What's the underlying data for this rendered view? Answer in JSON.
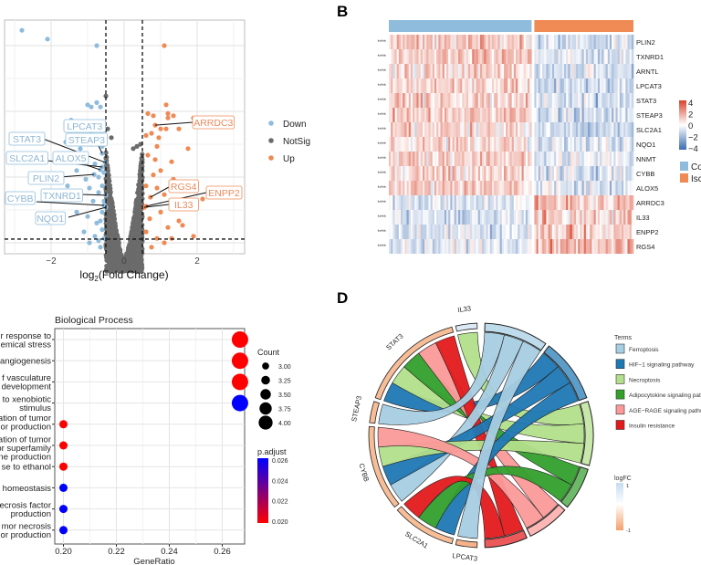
{
  "panel_labels": {
    "b": "B",
    "d": "D"
  },
  "chart_data": [
    {
      "type": "scatter",
      "panel": "volcano",
      "xlabel_main": "log",
      "xlabel_sub": "2",
      "xlabel_rest": "(Fold Change)",
      "xlim": [
        -3.2,
        3.3
      ],
      "ylim": [
        -0.5,
        11.2
      ],
      "x_ticks": [
        -2,
        0,
        2
      ],
      "x_tick_labels": [
        "−2",
        "0",
        "2"
      ],
      "fc_cutoff": [
        -0.5,
        0.5
      ],
      "p_cutoff_line": 1.17,
      "grid": true,
      "legend_position": "right",
      "legend": [
        {
          "label": "Down",
          "color": "#8fbcdc"
        },
        {
          "label": "NotSig",
          "color": "#6b6b6b"
        },
        {
          "label": "Up",
          "color": "#ef8a55"
        }
      ],
      "labeled_genes": [
        {
          "gene": "LPCAT3",
          "group": "Down",
          "x": -0.6,
          "y": 5.4
        },
        {
          "gene": "STEAP3",
          "group": "Down",
          "x": -0.6,
          "y": 5.08
        },
        {
          "gene": "STAT3",
          "group": "Down",
          "x": -0.52,
          "y": 4.67
        },
        {
          "gene": "SLC2A1",
          "group": "Down",
          "x": -0.6,
          "y": 4.46
        },
        {
          "gene": "ALOX5",
          "group": "Down",
          "x": -0.65,
          "y": 4.33
        },
        {
          "gene": "PLIN2",
          "group": "Down",
          "x": -0.82,
          "y": 4.12
        },
        {
          "gene": "TXNRD1",
          "group": "Down",
          "x": -0.5,
          "y": 3.17
        },
        {
          "gene": "CYBB",
          "group": "Down",
          "x": -0.55,
          "y": 2.71
        },
        {
          "gene": "NQO1",
          "group": "Down",
          "x": -0.5,
          "y": 2.62
        },
        {
          "gene": "ARRDC3",
          "group": "Up",
          "x": 0.85,
          "y": 6.37
        },
        {
          "gene": "RGS4",
          "group": "Up",
          "x": 0.72,
          "y": 3.08
        },
        {
          "gene": "ENPP2",
          "group": "Up",
          "x": 0.6,
          "y": 2.67
        },
        {
          "gene": "IL33",
          "group": "Up",
          "x": 0.55,
          "y": 2.62
        }
      ],
      "down_points": [
        [
          -2.8,
          10.7
        ],
        [
          -2.1,
          10.3
        ],
        [
          -0.75,
          10.0
        ],
        [
          -1.0,
          7.3
        ],
        [
          -0.9,
          7.2
        ],
        [
          -0.75,
          7.4
        ],
        [
          -0.65,
          7.2
        ],
        [
          -1.45,
          6.6
        ],
        [
          -1.25,
          6.5
        ],
        [
          -1.6,
          5.6
        ],
        [
          -1.4,
          5.8
        ],
        [
          -1.2,
          5.3
        ],
        [
          -1.5,
          5.0
        ],
        [
          -1.1,
          4.8
        ],
        [
          -0.9,
          5.5
        ],
        [
          -1.3,
          4.3
        ],
        [
          -0.8,
          4.6
        ],
        [
          -0.7,
          4.0
        ],
        [
          -1.05,
          3.9
        ],
        [
          -1.55,
          3.6
        ],
        [
          -0.95,
          3.5
        ],
        [
          -0.7,
          3.3
        ],
        [
          -1.2,
          3.0
        ],
        [
          -0.85,
          2.9
        ],
        [
          -0.6,
          2.4
        ],
        [
          -1.0,
          2.2
        ],
        [
          -0.75,
          1.9
        ],
        [
          -0.6,
          1.6
        ],
        [
          -1.1,
          1.5
        ],
        [
          -0.55,
          1.2
        ],
        [
          -0.8,
          1.3
        ],
        [
          -0.65,
          0.8
        ],
        [
          -0.7,
          6.2
        ],
        [
          -0.6,
          5.9
        ],
        [
          -0.9,
          6.1
        ],
        [
          -0.55,
          4.2
        ],
        [
          -0.6,
          3.6
        ],
        [
          -0.55,
          2.9
        ],
        [
          -0.95,
          1.0
        ],
        [
          -0.7,
          1.1
        ],
        [
          -1.3,
          2.4
        ],
        [
          -0.65,
          2.0
        ]
      ],
      "up_points": [
        [
          1.1,
          10.0
        ],
        [
          1.15,
          7.3
        ],
        [
          1.2,
          6.9
        ],
        [
          1.2,
          6.7
        ],
        [
          0.65,
          6.9
        ],
        [
          0.8,
          6.8
        ],
        [
          1.35,
          6.8
        ],
        [
          1.9,
          6.7
        ],
        [
          1.0,
          6.2
        ],
        [
          1.15,
          6.2
        ],
        [
          1.5,
          6.2
        ],
        [
          0.6,
          5.9
        ],
        [
          0.75,
          6.0
        ],
        [
          1.75,
          5.3
        ],
        [
          0.9,
          5.4
        ],
        [
          1.3,
          4.7
        ],
        [
          0.65,
          5.0
        ],
        [
          1.0,
          4.3
        ],
        [
          1.35,
          3.9
        ],
        [
          0.8,
          4.1
        ],
        [
          0.6,
          3.6
        ],
        [
          0.9,
          3.5
        ],
        [
          1.1,
          3.2
        ],
        [
          2.15,
          3.0
        ],
        [
          1.8,
          2.7
        ],
        [
          1.3,
          2.6
        ],
        [
          1.0,
          2.4
        ],
        [
          1.5,
          2.0
        ],
        [
          0.7,
          2.1
        ],
        [
          1.2,
          1.7
        ],
        [
          1.6,
          1.8
        ],
        [
          1.9,
          1.3
        ],
        [
          0.9,
          1.2
        ],
        [
          1.1,
          1.0
        ],
        [
          0.6,
          1.5
        ],
        [
          0.75,
          0.8
        ],
        [
          1.3,
          1.2
        ],
        [
          0.85,
          4.8
        ],
        [
          0.95,
          5.8
        ]
      ],
      "notsig_outliers": [
        [
          -0.5,
          7.7
        ],
        [
          -0.45,
          6.2
        ],
        [
          -0.35,
          5.8
        ],
        [
          0.45,
          5.5
        ],
        [
          0.35,
          5.4
        ],
        [
          0.25,
          5.3
        ]
      ]
    },
    {
      "type": "heatmap",
      "panel": "heatmap",
      "rows": [
        "PLIN2",
        "TXNRD1",
        "ARNTL",
        "LPCAT3",
        "STAT3",
        "STEAP3",
        "SLC2A1",
        "NQO1",
        "NNMT",
        "CYBB",
        "ALOX5",
        "ARRDC3",
        "IL33",
        "ENPP2",
        "RGS4"
      ],
      "significance": "****",
      "groups": [
        {
          "label": "Co",
          "color": "#8fbcdc",
          "n": 72
        },
        {
          "label": "Isc",
          "color": "#ef8a55",
          "n": 50
        }
      ],
      "row_group_means": [
        [
          1.3,
          -1.0
        ],
        [
          1.1,
          -0.8
        ],
        [
          0.9,
          -1.1
        ],
        [
          1.0,
          -1.1
        ],
        [
          1.1,
          -1.0
        ],
        [
          1.2,
          -1.0
        ],
        [
          0.8,
          -1.2
        ],
        [
          0.9,
          -0.7
        ],
        [
          1.0,
          -0.6
        ],
        [
          0.9,
          -0.8
        ],
        [
          1.1,
          -1.0
        ],
        [
          -0.6,
          1.3
        ],
        [
          -0.8,
          1.1
        ],
        [
          -0.6,
          1.4
        ],
        [
          -0.7,
          1.5
        ]
      ],
      "color_scale": {
        "min": -4,
        "max": 4,
        "low": "#3b6cb0",
        "mid": "#ffffff",
        "high": "#d7432a"
      },
      "colorbar_labels": [
        "4",
        "2",
        "0",
        "−2",
        "−4"
      ]
    },
    {
      "type": "scatter",
      "panel": "dotplot",
      "title": "Biological Process",
      "xlabel": "GeneRatio",
      "xlim": [
        0.1975,
        0.2715
      ],
      "x_ticks": [
        0.2,
        0.22,
        0.24,
        0.26
      ],
      "x_tick_labels": [
        "0.20",
        "0.22",
        "0.24",
        "0.26"
      ],
      "terms": [
        {
          "label": [
            "r response to",
            "emical stress"
          ],
          "gene_ratio": 0.2667,
          "count": 4,
          "p_adjust": 0.0198
        },
        {
          "label": [
            "angiogenesis"
          ],
          "gene_ratio": 0.2667,
          "count": 4,
          "p_adjust": 0.0198
        },
        {
          "label": [
            "f vasculature",
            "development"
          ],
          "gene_ratio": 0.2667,
          "count": 4,
          "p_adjust": 0.0198
        },
        {
          "label": [
            "to xenobiotic",
            "stimulus"
          ],
          "gene_ratio": 0.2667,
          "count": 4,
          "p_adjust": 0.0262
        },
        {
          "label": [
            "ation of tumor",
            "or production"
          ],
          "gene_ratio": 0.2,
          "count": 3,
          "p_adjust": 0.0198
        },
        {
          "label": [
            "ation of tumor",
            "or superfamily",
            "ne production"
          ],
          "gene_ratio": 0.2,
          "count": 3,
          "p_adjust": 0.0198
        },
        {
          "label": [
            "se to ethanol"
          ],
          "gene_ratio": 0.2,
          "count": 3,
          "p_adjust": 0.0198
        },
        {
          "label": [
            "homeostasis"
          ],
          "gene_ratio": 0.2,
          "count": 3,
          "p_adjust": 0.0262
        },
        {
          "label": [
            "ecrosis factor",
            "production"
          ],
          "gene_ratio": 0.2,
          "count": 3,
          "p_adjust": 0.0262
        },
        {
          "label": [
            "mor necrosis",
            "or production"
          ],
          "gene_ratio": 0.2,
          "count": 3,
          "p_adjust": 0.0262
        }
      ],
      "size_legend": {
        "title": "Count",
        "values": [
          3.0,
          3.25,
          3.5,
          3.75,
          4.0
        ],
        "labels": [
          "3.00",
          "3.25",
          "3.50",
          "3.75",
          "4.00"
        ]
      },
      "color_legend": {
        "title": "p.adjust",
        "min": 0.0198,
        "max": 0.0262,
        "low_color": "#ff0000",
        "high_color": "#0000ff",
        "labels": [
          "0.026",
          "0.024",
          "0.022",
          "0.020"
        ],
        "label_values": [
          0.026,
          0.024,
          0.022,
          0.02
        ]
      }
    },
    {
      "type": "chord",
      "panel": "chord",
      "genes": [
        {
          "name": "LPCAT3",
          "logFC": -0.8
        },
        {
          "name": "SLC2A1",
          "logFC": -0.7
        },
        {
          "name": "CYBB",
          "logFC": -0.7
        },
        {
          "name": "STEAP3",
          "logFC": -0.7
        },
        {
          "name": "STAT3",
          "logFC": -0.7
        },
        {
          "name": "IL33",
          "logFC": 0.6
        }
      ],
      "terms_title": "Terms",
      "terms": [
        {
          "name": "Ferroptosis",
          "color": "#a6cee3"
        },
        {
          "name": "HIF−1 signaling pathway",
          "color": "#1f78b4"
        },
        {
          "name": "Necroptosis",
          "color": "#b2df8a"
        },
        {
          "name": "Adipocytokine signaling pathw",
          "color": "#33a02c"
        },
        {
          "name": "AGE−RAGE signaling pathwa",
          "color": "#fb9a99"
        },
        {
          "name": "Insulin resistance",
          "color": "#e31a1c"
        }
      ],
      "links": [
        [
          "IL33",
          "Necroptosis"
        ],
        [
          "STAT3",
          "HIF−1 signaling pathway"
        ],
        [
          "STAT3",
          "Necroptosis"
        ],
        [
          "STAT3",
          "Adipocytokine signaling pathw"
        ],
        [
          "STAT3",
          "AGE−RAGE signaling pathwa"
        ],
        [
          "STAT3",
          "Insulin resistance"
        ],
        [
          "STEAP3",
          "Ferroptosis"
        ],
        [
          "CYBB",
          "Ferroptosis"
        ],
        [
          "CYBB",
          "HIF−1 signaling pathway"
        ],
        [
          "CYBB",
          "Necroptosis"
        ],
        [
          "CYBB",
          "AGE−RAGE signaling pathwa"
        ],
        [
          "SLC2A1",
          "HIF−1 signaling pathway"
        ],
        [
          "SLC2A1",
          "Adipocytokine signaling pathw"
        ],
        [
          "SLC2A1",
          "Insulin resistance"
        ],
        [
          "LPCAT3",
          "Ferroptosis"
        ]
      ],
      "logfc_legend": {
        "title": "logFC",
        "max_label": "1",
        "min_label": "-1",
        "high_color": "#c6dbef",
        "mid_color": "#ffffff",
        "low_color": "#f4a06b"
      }
    }
  ]
}
